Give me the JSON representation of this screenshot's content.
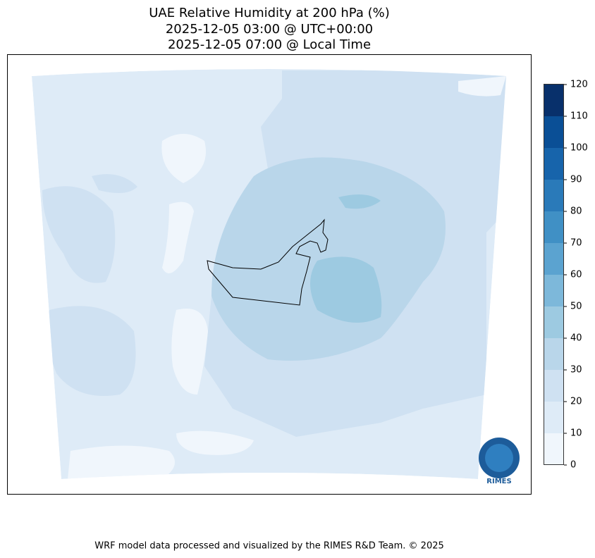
{
  "title": [
    "UAE Relative Humidity at 200 hPa (%)",
    "2025-12-05 03:00 @ UTC+00:00",
    "2025-12-05 07:00 @ Local Time"
  ],
  "colorbar": {
    "levels": [
      0,
      10,
      20,
      30,
      40,
      50,
      60,
      70,
      80,
      90,
      100,
      110,
      120
    ],
    "colors": [
      "#f0f6fc",
      "#deebf7",
      "#cfe1f2",
      "#b9d6ea",
      "#9dcae1",
      "#7db8da",
      "#5ba3d0",
      "#4090c5",
      "#2a7ab9",
      "#1764ab",
      "#0a4f96",
      "#08306b"
    ]
  },
  "logo": "RIMES",
  "footer": "WRF model data processed and visualized by the RIMES R&D Team. © 2025"
}
